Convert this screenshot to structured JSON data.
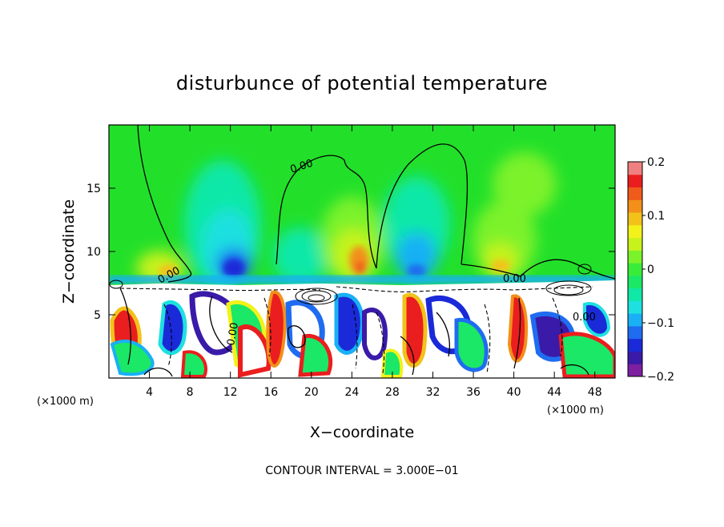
{
  "chart_data": {
    "type": "heatmap",
    "title": "disturbunce of potential temperature",
    "xlabel": "X−coordinate",
    "ylabel": "Z−coordinate",
    "x_unit_left": "(×1000 m)",
    "x_unit_right": "(×1000 m)",
    "xlim": [
      0,
      50
    ],
    "ylim": [
      0,
      20
    ],
    "x_ticks": [
      4,
      8,
      12,
      16,
      20,
      24,
      28,
      32,
      36,
      40,
      44,
      48
    ],
    "x_tick_labels": [
      "4",
      "8",
      "12",
      "16",
      "20",
      "24",
      "28",
      "32",
      "36",
      "40",
      "44",
      "48"
    ],
    "y_ticks": [
      5,
      10,
      15
    ],
    "y_tick_labels": [
      "5",
      "10",
      "15"
    ],
    "colorbar": {
      "range": [
        -0.2,
        0.2
      ],
      "tick_labels": [
        "0.2",
        "0.1",
        "0",
        "−0.1",
        "−0.2"
      ],
      "colors": [
        "#7c1fa0",
        "#3a1aa8",
        "#1a2ad8",
        "#1f6cf0",
        "#19b0f5",
        "#1ee0e0",
        "#10e8a8",
        "#1ae866",
        "#3aec3a",
        "#7cf22a",
        "#c8f21c",
        "#f2f21a",
        "#f2c21a",
        "#f2901a",
        "#f05a1a",
        "#ea1e1e",
        "#f08080"
      ]
    },
    "contour_label": "0.00",
    "footer": "CONTOUR INTERVAL = 3.000E−01"
  }
}
